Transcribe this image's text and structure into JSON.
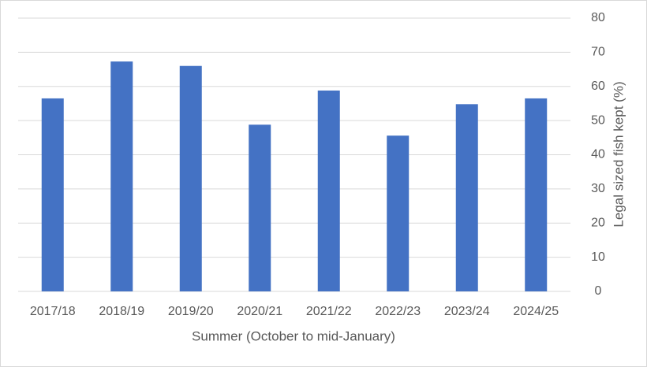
{
  "chart_data": {
    "type": "bar",
    "x_label": "Summer (October to mid-January)",
    "y_label": "Legal sized fish kept (%)",
    "categories": [
      "2017/18",
      "2018/19",
      "2019/20",
      "2020/21",
      "2021/22",
      "2022/23",
      "2023/24",
      "2024/25"
    ],
    "values": [
      56.5,
      67.3,
      66,
      48.8,
      58.8,
      45.6,
      54.8,
      56.5
    ],
    "color": "#4472c4",
    "ylim": [
      0,
      80
    ],
    "yticks": [
      0,
      10,
      20,
      30,
      40,
      50,
      60,
      70,
      80
    ],
    "y_axis_side": "right",
    "grid": true
  }
}
